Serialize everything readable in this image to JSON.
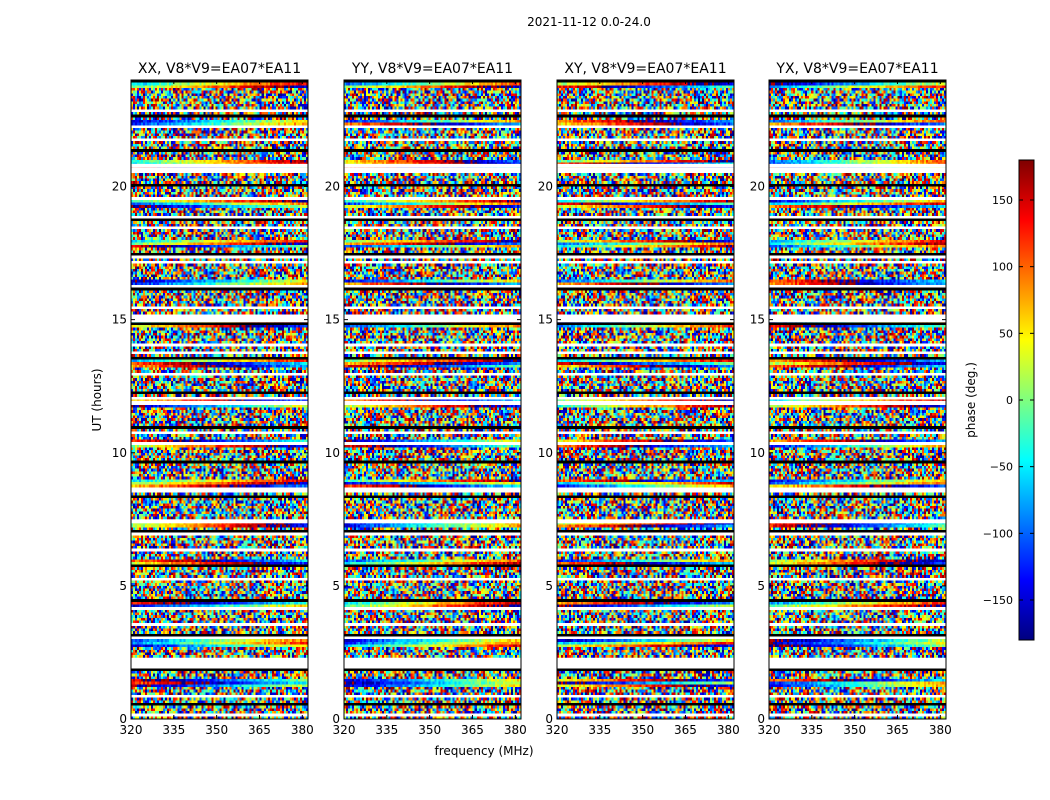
{
  "figure": {
    "suptitle": "2021-11-12 0.0-24.0",
    "ylabel": "UT (hours)",
    "xlabel": "frequency (MHz)"
  },
  "colorbar": {
    "label": "phase (deg.)",
    "ticks": [
      150,
      100,
      50,
      0,
      -50,
      -100,
      -150
    ],
    "tick_labels": [
      "150",
      "100",
      "50",
      "0",
      "−50",
      "−100",
      "−150"
    ],
    "range": [
      -180,
      180
    ],
    "colormap": "jet",
    "colors": [
      "#00007f",
      "#0000ff",
      "#007fff",
      "#00ffff",
      "#7fff7f",
      "#ffff00",
      "#ff7f00",
      "#ff0000",
      "#7f0000"
    ]
  },
  "chart_data": {
    "type": "heatmap",
    "quantity": "phase (deg.)",
    "value_range": [
      -180,
      180
    ],
    "xlim": [
      320,
      382
    ],
    "ylim": [
      0,
      24
    ],
    "xticks": [
      320,
      335,
      350,
      365,
      380
    ],
    "yticks": [
      0,
      5,
      10,
      15,
      20
    ],
    "panels": [
      {
        "title": "XX, V8*V9=EA07*EA11"
      },
      {
        "title": "YY, V8*V9=EA07*EA11"
      },
      {
        "title": "XY, V8*V9=EA07*EA11"
      },
      {
        "title": "YX, V8*V9=EA07*EA11"
      }
    ],
    "flagged_hour_ranges": [
      [
        2.0,
        2.3
      ],
      [
        11.8,
        11.95
      ],
      [
        14.9,
        15.1
      ],
      [
        7.35,
        7.5
      ],
      [
        19.5,
        19.6
      ],
      [
        20.7,
        20.85
      ]
    ]
  }
}
